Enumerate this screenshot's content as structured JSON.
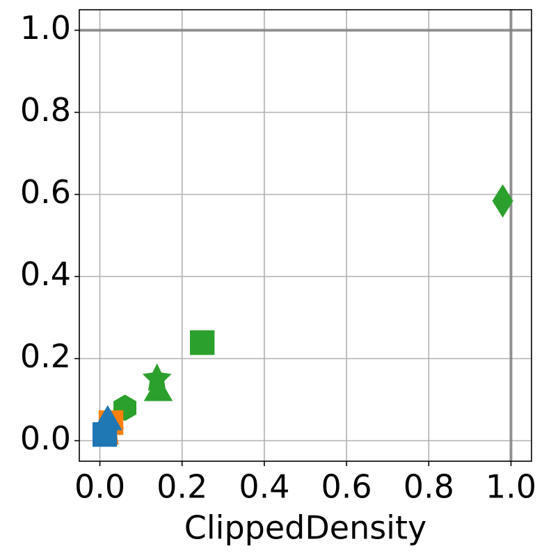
{
  "chart_data": {
    "type": "scatter",
    "xlabel": "ClippedDensity",
    "xlim": [
      -0.05,
      1.05
    ],
    "ylim": [
      -0.05,
      1.05
    ],
    "xticks": [
      {
        "value": 0,
        "label": "0.0"
      },
      0.2,
      0.4,
      0.6,
      0.8,
      {
        "value": 1,
        "label": "1.0"
      }
    ],
    "yticks": [
      {
        "value": 0,
        "label": "0.0"
      },
      0.2,
      0.4,
      0.6,
      0.8,
      {
        "value": 1,
        "label": "1.0"
      }
    ],
    "grid": true,
    "ref_lines": {
      "x": 1,
      "y": 1
    },
    "series": [
      {
        "color": "#2ca02c",
        "markers": [
          "diamond",
          "square",
          "star",
          "triangle",
          "hexagon"
        ],
        "x": [
          0.98,
          0.249,
          0.139,
          0.142,
          0.061
        ],
        "values": [
          0.584,
          0.239,
          0.151,
          0.117,
          0.08
        ]
      },
      {
        "color": "#ff7f0e",
        "markers": [
          "square",
          "star"
        ],
        "x": [
          0.027,
          0.024
        ],
        "values": [
          0.044,
          0.02
        ]
      },
      {
        "color": "#1f77b4",
        "markers": [
          "triangle",
          "square"
        ],
        "x": [
          0.019,
          0.012
        ],
        "values": [
          0.046,
          0.015
        ]
      }
    ]
  }
}
